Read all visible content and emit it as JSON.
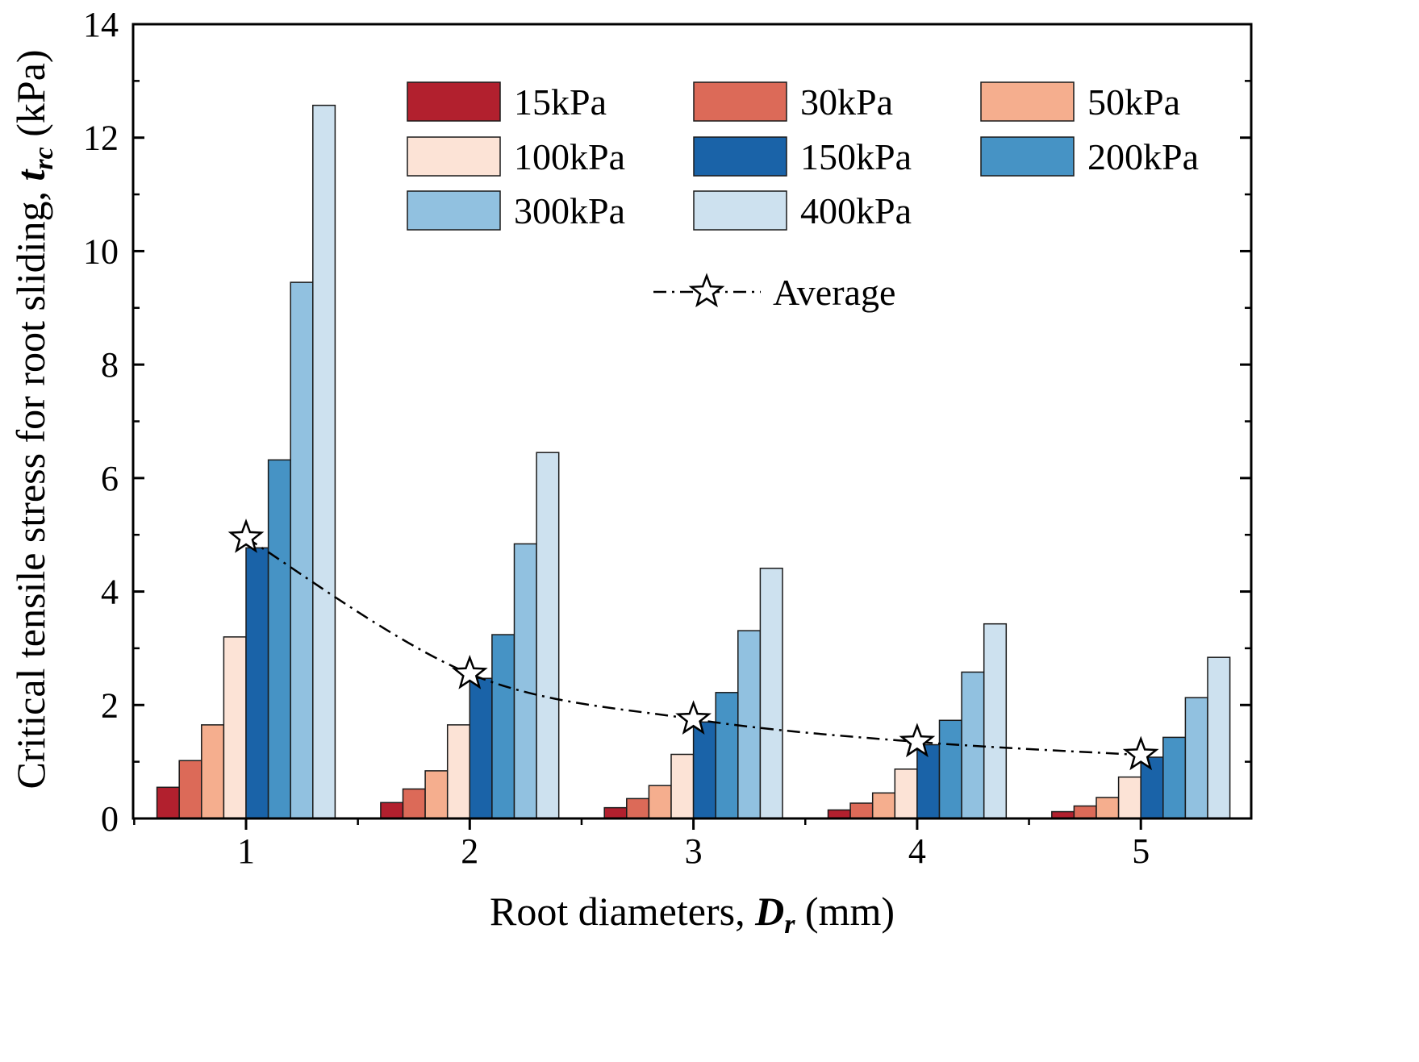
{
  "chart_data": {
    "type": "bar",
    "title": "",
    "xlabel": {
      "prefix": "Root diameters, ",
      "symbol": "D",
      "subscript": "r",
      "suffix": " (mm)"
    },
    "ylabel": {
      "prefix": "Critical tensile stress for root sliding, ",
      "symbol": "t",
      "subscript": "rc",
      "suffix": " (kPa)"
    },
    "ylim": [
      0,
      14
    ],
    "yticks": [
      0,
      2,
      4,
      6,
      8,
      10,
      12,
      14
    ],
    "categories": [
      "1",
      "2",
      "3",
      "4",
      "5"
    ],
    "series": [
      {
        "name": "15kPa",
        "color": "#b2202e",
        "values": [
          0.55,
          0.28,
          0.19,
          0.15,
          0.12
        ]
      },
      {
        "name": "30kPa",
        "color": "#dc6a58",
        "values": [
          1.02,
          0.52,
          0.35,
          0.27,
          0.22
        ]
      },
      {
        "name": "50kPa",
        "color": "#f5ae8e",
        "values": [
          1.65,
          0.84,
          0.58,
          0.45,
          0.37
        ]
      },
      {
        "name": "100kPa",
        "color": "#fce3d6",
        "values": [
          3.2,
          1.65,
          1.13,
          0.87,
          0.73
        ]
      },
      {
        "name": "150kPa",
        "color": "#1a63a8",
        "values": [
          4.77,
          2.47,
          1.7,
          1.3,
          1.08
        ]
      },
      {
        "name": "200kPa",
        "color": "#4693c5",
        "values": [
          6.32,
          3.24,
          2.22,
          1.73,
          1.43
        ]
      },
      {
        "name": "300kPa",
        "color": "#91c1e0",
        "values": [
          9.45,
          4.84,
          3.31,
          2.58,
          2.13
        ]
      },
      {
        "name": "400kPa",
        "color": "#cde1ef",
        "values": [
          12.57,
          6.45,
          4.41,
          3.43,
          2.84
        ]
      }
    ],
    "average": {
      "name": "Average",
      "values": [
        4.95,
        2.55,
        1.75,
        1.35,
        1.12
      ]
    },
    "legend": "top",
    "grid": false
  }
}
